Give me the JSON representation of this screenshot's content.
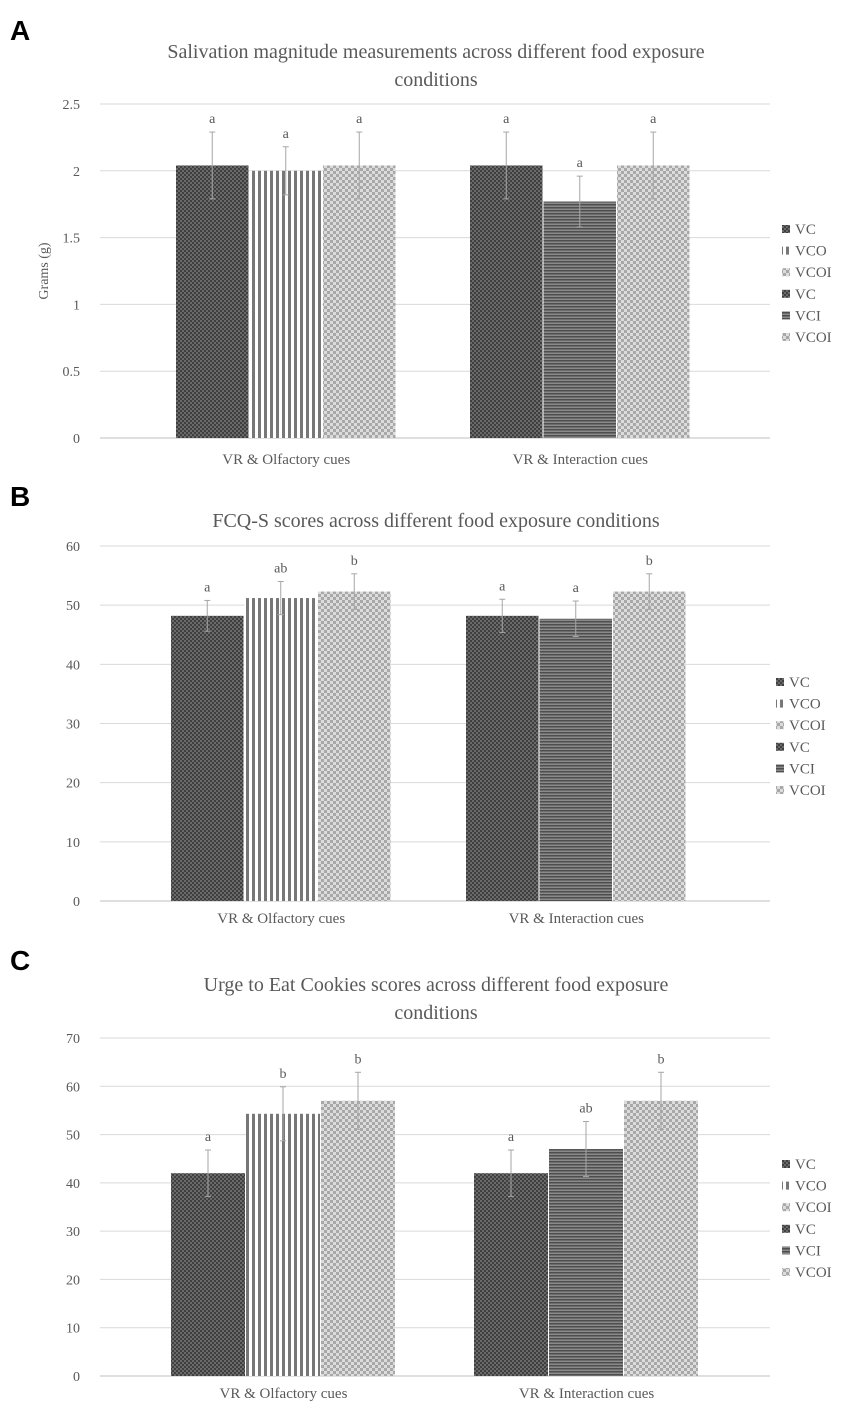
{
  "colors": {
    "dark": "#4d4d4d",
    "mid": "#6e6e6e",
    "light": "#bdbdbd",
    "grid": "#d9d9d9",
    "axis": "#bfbfbf",
    "err": "#a6a6a6"
  },
  "chart_data": [
    {
      "panel": "A",
      "type": "bar",
      "title_lines": [
        "Salivation magnitude measurements across different food exposure",
        "conditions"
      ],
      "ylabel": "Grams (g)",
      "ylim": [
        0,
        2.5
      ],
      "yticks": [
        "0",
        "0.5",
        "1",
        "1.5",
        "2",
        "2.5"
      ],
      "ytick_values": [
        0,
        0.5,
        1,
        1.5,
        2,
        2.5
      ],
      "groups": [
        {
          "label": "VR & Olfactory cues",
          "bars": [
            {
              "name": "VC",
              "pattern": "check",
              "value": 2.04,
              "err": 0.25,
              "sig": "a"
            },
            {
              "name": "VCO",
              "pattern": "vstripe",
              "value": 2.0,
              "err": 0.18,
              "sig": "a"
            },
            {
              "name": "VCOI",
              "pattern": "dots",
              "value": 2.04,
              "err": 0.25,
              "sig": "a"
            }
          ]
        },
        {
          "label": "VR & Interaction cues",
          "bars": [
            {
              "name": "VC",
              "pattern": "check",
              "value": 2.04,
              "err": 0.25,
              "sig": "a"
            },
            {
              "name": "VCI",
              "pattern": "hstripe",
              "value": 1.77,
              "err": 0.19,
              "sig": "a"
            },
            {
              "name": "VCOI",
              "pattern": "dots",
              "value": 2.04,
              "err": 0.25,
              "sig": "a"
            }
          ]
        }
      ],
      "legend": [
        "VC",
        "VCO",
        "VCOI",
        "VC",
        "VCI",
        "VCOI"
      ]
    },
    {
      "panel": "B",
      "type": "bar",
      "title_lines": [
        "FCQ-S scores across different food exposure conditions"
      ],
      "ylabel": "",
      "ylim": [
        0,
        60
      ],
      "yticks": [
        "0",
        "10",
        "20",
        "30",
        "40",
        "50",
        "60"
      ],
      "ytick_values": [
        0,
        10,
        20,
        30,
        40,
        50,
        60
      ],
      "groups": [
        {
          "label": "VR & Olfactory cues",
          "bars": [
            {
              "name": "VC",
              "pattern": "check",
              "value": 48.2,
              "err": 2.6,
              "sig": "a"
            },
            {
              "name": "VCO",
              "pattern": "vstripe",
              "value": 51.2,
              "err": 2.8,
              "sig": "ab"
            },
            {
              "name": "VCOI",
              "pattern": "dots",
              "value": 52.3,
              "err": 3.0,
              "sig": "b"
            }
          ]
        },
        {
          "label": "VR & Interaction cues",
          "bars": [
            {
              "name": "VC",
              "pattern": "check",
              "value": 48.2,
              "err": 2.8,
              "sig": "a"
            },
            {
              "name": "VCI",
              "pattern": "hstripe",
              "value": 47.7,
              "err": 3.0,
              "sig": "a"
            },
            {
              "name": "VCOI",
              "pattern": "dots",
              "value": 52.3,
              "err": 3.0,
              "sig": "b"
            }
          ]
        }
      ],
      "legend": [
        "VC",
        "VCO",
        "VCOI",
        "VC",
        "VCI",
        "VCOI"
      ]
    },
    {
      "panel": "C",
      "type": "bar",
      "title_lines": [
        "Urge to Eat Cookies scores across different food exposure",
        "conditions"
      ],
      "ylabel": "",
      "ylim": [
        0,
        70
      ],
      "yticks": [
        "0",
        "10",
        "20",
        "30",
        "40",
        "50",
        "60",
        "70"
      ],
      "ytick_values": [
        0,
        10,
        20,
        30,
        40,
        50,
        60,
        70
      ],
      "groups": [
        {
          "label": "VR & Olfactory cues",
          "bars": [
            {
              "name": "VC",
              "pattern": "check",
              "value": 42,
              "err": 4.8,
              "sig": "a"
            },
            {
              "name": "VCO",
              "pattern": "vstripe",
              "value": 54.3,
              "err": 5.6,
              "sig": "b"
            },
            {
              "name": "VCOI",
              "pattern": "dots",
              "value": 57,
              "err": 5.9,
              "sig": "b"
            }
          ]
        },
        {
          "label": "VR & Interaction cues",
          "bars": [
            {
              "name": "VC",
              "pattern": "check",
              "value": 42,
              "err": 4.8,
              "sig": "a"
            },
            {
              "name": "VCI",
              "pattern": "hstripe",
              "value": 47,
              "err": 5.7,
              "sig": "ab"
            },
            {
              "name": "VCOI",
              "pattern": "dots",
              "value": 57,
              "err": 5.9,
              "sig": "b"
            }
          ]
        }
      ],
      "legend": [
        "VC",
        "VCO",
        "VCOI",
        "VC",
        "VCI",
        "VCOI"
      ]
    }
  ]
}
